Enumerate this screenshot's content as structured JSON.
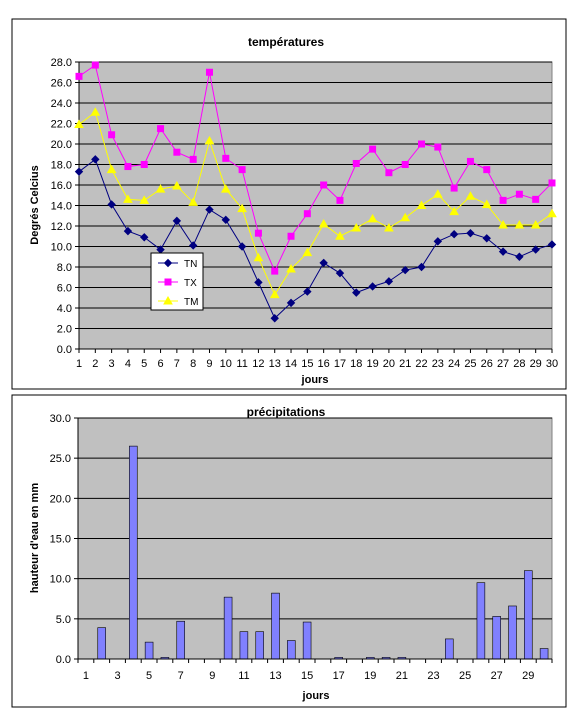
{
  "chart_data": [
    {
      "type": "line",
      "title": "températures",
      "xlabel": "jours",
      "ylabel": "Degrés Celcius",
      "ylim": [
        0,
        28
      ],
      "yticks": [
        "0.0",
        "2.0",
        "4.0",
        "6.0",
        "8.0",
        "10.0",
        "12.0",
        "14.0",
        "16.0",
        "18.0",
        "20.0",
        "22.0",
        "24.0",
        "26.0",
        "28.0"
      ],
      "categories": [
        "1",
        "2",
        "3",
        "4",
        "5",
        "6",
        "7",
        "8",
        "9",
        "10",
        "11",
        "12",
        "13",
        "14",
        "15",
        "16",
        "17",
        "18",
        "19",
        "20",
        "21",
        "22",
        "23",
        "24",
        "25",
        "26",
        "27",
        "28",
        "29",
        "30"
      ],
      "grid": true,
      "legend_position": "left-center",
      "series": [
        {
          "name": "TN",
          "color": "#000080",
          "marker": "diamond",
          "values": [
            17.3,
            18.5,
            14.1,
            11.5,
            10.9,
            9.7,
            12.5,
            10.1,
            13.6,
            12.6,
            10.0,
            6.5,
            3.0,
            4.5,
            5.6,
            8.4,
            7.4,
            5.5,
            6.1,
            6.6,
            7.7,
            8.0,
            10.5,
            11.2,
            11.3,
            10.8,
            9.5,
            9.0,
            9.7,
            10.2
          ]
        },
        {
          "name": "TX",
          "color": "#ff00ff",
          "marker": "square",
          "values": [
            26.6,
            27.7,
            20.9,
            17.8,
            18.0,
            21.5,
            19.2,
            18.5,
            27.0,
            18.6,
            17.5,
            11.3,
            7.6,
            11.0,
            13.2,
            16.0,
            14.5,
            18.1,
            19.5,
            17.2,
            18.0,
            20.0,
            19.7,
            15.7,
            18.3,
            17.5,
            14.5,
            15.1,
            14.6,
            16.2
          ]
        },
        {
          "name": "TM",
          "color": "#ffff00",
          "marker": "triangle",
          "values": [
            21.9,
            23.1,
            17.5,
            14.6,
            14.5,
            15.6,
            15.9,
            14.3,
            20.3,
            15.6,
            13.7,
            8.9,
            5.3,
            7.8,
            9.4,
            12.2,
            11.0,
            11.8,
            12.7,
            11.8,
            12.8,
            14.0,
            15.1,
            13.4,
            14.9,
            14.1,
            12.1,
            12.1,
            12.1,
            13.2
          ]
        }
      ]
    },
    {
      "type": "bar",
      "title": "précipitations",
      "xlabel": "jours",
      "ylabel": "hauteur d'eau en mm",
      "ylim": [
        0,
        30
      ],
      "yticks": [
        "0.0",
        "5.0",
        "10.0",
        "15.0",
        "20.0",
        "25.0",
        "30.0"
      ],
      "xtick_labels": [
        "1",
        "3",
        "5",
        "7",
        "9",
        "11",
        "13",
        "15",
        "17",
        "19",
        "21",
        "23",
        "25",
        "27",
        "29"
      ],
      "grid": true,
      "color": "#8080ff",
      "days": 30,
      "values": [
        0,
        3.9,
        0,
        26.5,
        2.1,
        0.2,
        4.7,
        0,
        0,
        7.7,
        3.4,
        3.4,
        8.2,
        2.3,
        4.6,
        0,
        0.2,
        0,
        0.2,
        0.2,
        0.2,
        0,
        0,
        2.5,
        0,
        9.5,
        5.3,
        6.6,
        11.0,
        1.3
      ]
    }
  ]
}
